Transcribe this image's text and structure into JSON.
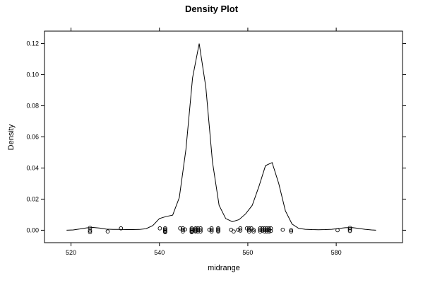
{
  "chart_data": {
    "type": "line",
    "title": "Density Plot",
    "xlabel": "midrange",
    "ylabel": "Density",
    "xlim": [
      514,
      595
    ],
    "ylim": [
      -0.008,
      0.128
    ],
    "x_ticks": [
      520,
      540,
      560,
      580
    ],
    "y_ticks": [
      0.0,
      0.02,
      0.04,
      0.06,
      0.08,
      0.1,
      0.12
    ],
    "x_tick_labels": [
      "520",
      "540",
      "560",
      "580"
    ],
    "y_tick_labels": [
      "0.00",
      "0.02",
      "0.04",
      "0.06",
      "0.08",
      "0.10",
      "0.12"
    ],
    "grid": false,
    "series": [
      {
        "kind": "density-curve",
        "x": [
          519,
          520.5,
          522,
          523.5,
          525,
          526.5,
          528,
          529.5,
          531,
          532.5,
          534,
          535.5,
          537,
          538.5,
          540,
          541.5,
          543,
          544.5,
          546,
          547.5,
          549,
          550.5,
          552,
          553.5,
          555,
          556.5,
          558,
          559.5,
          561,
          562.5,
          564,
          565.5,
          567,
          568.5,
          570,
          571.5,
          573,
          574.5,
          576,
          577.5,
          579,
          580.5,
          582,
          583.5,
          585,
          586.5,
          588,
          589
        ],
        "y": [
          0.0,
          0.0002,
          0.0008,
          0.0015,
          0.0018,
          0.0014,
          0.0007,
          0.0005,
          0.0005,
          0.0004,
          0.0004,
          0.0005,
          0.001,
          0.003,
          0.0075,
          0.0088,
          0.0097,
          0.021,
          0.052,
          0.098,
          0.12,
          0.092,
          0.044,
          0.016,
          0.0075,
          0.0055,
          0.0068,
          0.0105,
          0.016,
          0.028,
          0.0415,
          0.0435,
          0.03,
          0.0125,
          0.004,
          0.0012,
          0.0006,
          0.0004,
          0.0003,
          0.0004,
          0.0006,
          0.0011,
          0.0016,
          0.0017,
          0.0012,
          0.0006,
          0.0002,
          0.0
        ]
      },
      {
        "kind": "rug-points",
        "x": [
          524.3,
          524.3,
          524.3,
          528.3,
          531.3,
          540.1,
          541.3,
          541.3,
          541.3,
          541.3,
          541.3,
          544.7,
          545.3,
          545.3,
          545.3,
          545.8,
          547.3,
          547.3,
          547.3,
          547.3,
          547.3,
          548.2,
          548.2,
          548.2,
          548.2,
          548.7,
          548.7,
          548.7,
          549.3,
          549.3,
          549.3,
          551.3,
          551.8,
          551.8,
          551.8,
          553.3,
          553.3,
          553.3,
          553.3,
          556.2,
          556.8,
          557.8,
          558.3,
          558.3,
          559.8,
          560.3,
          560.3,
          560.3,
          560.8,
          561.3,
          561.3,
          562.8,
          562.8,
          562.8,
          563.3,
          563.3,
          563.8,
          563.8,
          563.8,
          564.3,
          564.3,
          564.3,
          564.8,
          564.8,
          564.8,
          565.2,
          565.2,
          567.9,
          569.8,
          569.8,
          580.3,
          583.1,
          583.1,
          583.1
        ],
        "y": [
          0.0015,
          -0.0002,
          -0.0012,
          -0.0008,
          0.0012,
          0.0012,
          0.0012,
          0.0005,
          -0.0002,
          -0.0008,
          -0.0012,
          0.0012,
          0.0012,
          0.0002,
          -0.0008,
          0.0005,
          0.0012,
          0.0005,
          -0.0002,
          -0.0008,
          -0.0012,
          0.0012,
          0.0005,
          -0.0002,
          -0.0008,
          0.0012,
          0.0002,
          -0.0008,
          0.0012,
          0.0002,
          -0.0008,
          0.0003,
          0.0012,
          0.0002,
          -0.0008,
          0.0012,
          0.0005,
          -0.0002,
          -0.0008,
          0.0003,
          -0.0008,
          0.0003,
          0.0012,
          -0.0002,
          0.0012,
          0.0012,
          0.0002,
          -0.0008,
          0.0012,
          0.0002,
          -0.0008,
          0.0012,
          0.0002,
          -0.0008,
          0.0012,
          -0.0002,
          0.0012,
          0.0002,
          -0.0008,
          0.0012,
          0.0002,
          -0.0008,
          0.0012,
          0.0002,
          -0.0008,
          0.0012,
          -0.0005,
          0.0003,
          0.0,
          -0.0008,
          0.0,
          0.0015,
          0.0005,
          -0.0005
        ]
      }
    ]
  }
}
